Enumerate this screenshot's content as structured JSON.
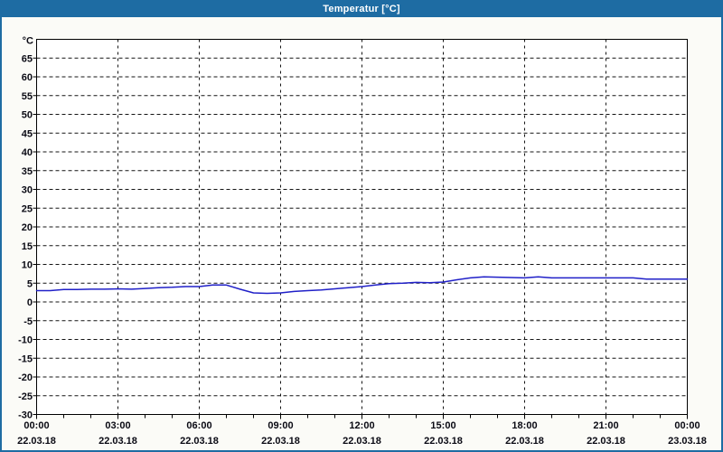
{
  "window": {
    "title": "Temperatur [°C]"
  },
  "colors": {
    "titlebar_bg": "#1e6ca3",
    "titlebar_text": "#ffffff",
    "window_bg": "#fbfbf7",
    "plot_bg": "#ffffff",
    "grid": "#141414",
    "axis": "#000000",
    "label_text": "#0a0a14",
    "series_line": "#2020c8"
  },
  "chart_data": {
    "type": "line",
    "title": "Temperatur [°C]",
    "ylabel": "°C",
    "ylim": [
      -30,
      70
    ],
    "ytick_step": 5,
    "ytick_label_min": -30,
    "ytick_label_max": 65,
    "grid": "dashed",
    "legend": "none",
    "x_start_hour": 0,
    "x_step_hours": 0.5,
    "x_total_hours": 24,
    "minor_xtick_hours": 1,
    "xticks": [
      {
        "hour": 0,
        "time": "00:00",
        "date": "22.03.18"
      },
      {
        "hour": 3,
        "time": "03:00",
        "date": "22.03.18"
      },
      {
        "hour": 6,
        "time": "06:00",
        "date": "22.03.18"
      },
      {
        "hour": 9,
        "time": "09:00",
        "date": "22.03.18"
      },
      {
        "hour": 12,
        "time": "12:00",
        "date": "22.03.18"
      },
      {
        "hour": 15,
        "time": "15:00",
        "date": "22.03.18"
      },
      {
        "hour": 18,
        "time": "18:00",
        "date": "22.03.18"
      },
      {
        "hour": 21,
        "time": "21:00",
        "date": "22.03.18"
      },
      {
        "hour": 24,
        "time": "00:00",
        "date": "23.03.18"
      }
    ],
    "series": [
      {
        "name": "Temperatur",
        "color": "#2020c8",
        "values": [
          3.0,
          3.0,
          3.3,
          3.3,
          3.4,
          3.4,
          3.5,
          3.4,
          3.6,
          3.8,
          3.9,
          4.1,
          4.1,
          4.5,
          4.5,
          3.4,
          2.4,
          2.3,
          2.4,
          2.8,
          3.0,
          3.2,
          3.5,
          3.8,
          4.1,
          4.5,
          4.9,
          5.0,
          5.2,
          5.1,
          5.3,
          5.9,
          6.4,
          6.7,
          6.6,
          6.5,
          6.4,
          6.7,
          6.4,
          6.4,
          6.4,
          6.4,
          6.4,
          6.4,
          6.4,
          6.1,
          6.1,
          6.1,
          6.1
        ]
      }
    ]
  }
}
